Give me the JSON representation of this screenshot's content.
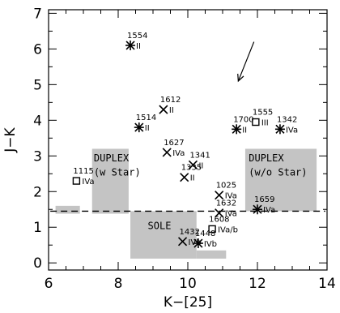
{
  "chart_data": {
    "type": "scatter",
    "xlabel": "K−[25]",
    "ylabel": "J−K",
    "xlim": [
      6,
      14
    ],
    "ylim": [
      -0.2,
      7.1
    ],
    "xticks": [
      "6",
      "8",
      "10",
      "12",
      "14"
    ],
    "yticks": [
      "0",
      "1",
      "2",
      "3",
      "4",
      "5",
      "6",
      "7"
    ],
    "x_minor_step": 0.5,
    "y_minor_step": 0.5,
    "hline_y": 1.45,
    "regions": [
      {
        "label": "",
        "x": [
          6.2,
          6.9
        ],
        "y": [
          1.38,
          1.6
        ]
      },
      {
        "label": "DUPLEX",
        "label2": "(w Star)",
        "x": [
          7.25,
          8.3
        ],
        "y": [
          1.38,
          3.2
        ]
      },
      {
        "label": "SOLE",
        "label2": "",
        "x": [
          8.35,
          10.25
        ],
        "y": [
          0.12,
          1.45
        ]
      },
      {
        "label": "",
        "x": [
          10.25,
          11.1
        ],
        "y": [
          0.12,
          0.35
        ]
      },
      {
        "label": "DUPLEX",
        "label2": "(w/o Star)",
        "x": [
          11.65,
          13.7
        ],
        "y": [
          1.45,
          3.2
        ]
      }
    ],
    "points": [
      {
        "id": "1554",
        "class": "II",
        "x": 8.35,
        "y": 6.1,
        "marker": "asterisk"
      },
      {
        "id": "1612",
        "class": "II",
        "x": 9.3,
        "y": 4.3,
        "marker": "x"
      },
      {
        "id": "1514",
        "class": "II",
        "x": 8.6,
        "y": 3.8,
        "marker": "asterisk"
      },
      {
        "id": "1700",
        "class": "II",
        "x": 11.4,
        "y": 3.75,
        "marker": "asterisk"
      },
      {
        "id": "1555",
        "class": "III",
        "x": 11.95,
        "y": 3.95,
        "marker": "square"
      },
      {
        "id": "1342",
        "class": "IVa",
        "x": 12.65,
        "y": 3.75,
        "marker": "asterisk"
      },
      {
        "id": "1627",
        "class": "IVa",
        "x": 9.4,
        "y": 3.1,
        "marker": "x"
      },
      {
        "id": "1341",
        "class": "II",
        "x": 10.15,
        "y": 2.75,
        "marker": "x"
      },
      {
        "id": "1335",
        "class": "II",
        "x": 9.9,
        "y": 2.4,
        "marker": "x"
      },
      {
        "id": "1115",
        "class": "IVa",
        "x": 6.8,
        "y": 2.3,
        "marker": "square"
      },
      {
        "id": "1025",
        "class": "IVa",
        "x": 10.9,
        "y": 1.9,
        "marker": "x"
      },
      {
        "id": "1632",
        "class": "IVa",
        "x": 10.9,
        "y": 1.4,
        "marker": "x"
      },
      {
        "id": "1659",
        "class": "IVa",
        "x": 12.0,
        "y": 1.5,
        "marker": "asterisk"
      },
      {
        "id": "1608",
        "class": "IVa/b",
        "x": 10.7,
        "y": 0.95,
        "marker": "square"
      },
      {
        "id": "1432",
        "class": "IVb",
        "x": 9.85,
        "y": 0.6,
        "marker": "x"
      },
      {
        "id": "1448",
        "class": "IVb",
        "x": 10.3,
        "y": 0.55,
        "marker": "asterisk"
      }
    ],
    "arrow": {
      "from": [
        11.9,
        6.2
      ],
      "to": [
        11.45,
        5.1
      ]
    }
  }
}
